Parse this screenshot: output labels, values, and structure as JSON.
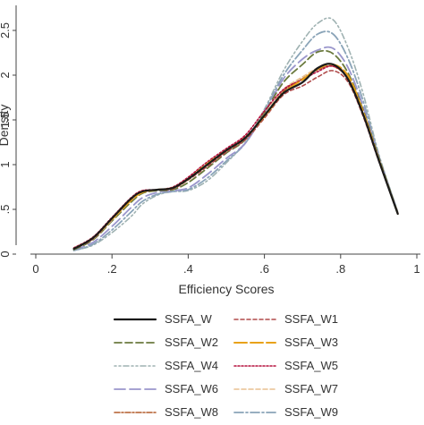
{
  "chart_data": {
    "type": "line",
    "xlabel": "Efficiency Scores",
    "ylabel": "Density",
    "xlim": [
      0,
      1
    ],
    "ylim": [
      0,
      2.7
    ],
    "x_ticks": [
      {
        "value": 0,
        "label": "0"
      },
      {
        "value": 0.2,
        "label": ".2"
      },
      {
        "value": 0.4,
        "label": ".4"
      },
      {
        "value": 0.6,
        "label": ".6"
      },
      {
        "value": 0.8,
        "label": ".8"
      },
      {
        "value": 1,
        "label": "1"
      }
    ],
    "y_ticks": [
      {
        "value": 0,
        "label": "0"
      },
      {
        "value": 0.5,
        "label": ".5"
      },
      {
        "value": 1,
        "label": "1"
      },
      {
        "value": 1.5,
        "label": "1.5"
      },
      {
        "value": 2,
        "label": "2"
      },
      {
        "value": 2.5,
        "label": "2.5"
      }
    ],
    "grid": false,
    "legend_position": "bottom",
    "x": [
      0.1,
      0.15,
      0.2,
      0.25,
      0.28,
      0.32,
      0.36,
      0.4,
      0.45,
      0.5,
      0.55,
      0.6,
      0.65,
      0.7,
      0.74,
      0.78,
      0.82,
      0.86,
      0.9,
      0.95
    ],
    "series": [
      {
        "name": "SSFA_W",
        "color": "#1a1a1a",
        "dash": "",
        "width": 2.2,
        "values": [
          0.06,
          0.18,
          0.4,
          0.62,
          0.7,
          0.72,
          0.74,
          0.84,
          1.0,
          1.16,
          1.3,
          1.55,
          1.8,
          1.92,
          2.08,
          2.12,
          1.95,
          1.55,
          1.05,
          0.45
        ]
      },
      {
        "name": "SSFA_W1",
        "color": "#b04a4a",
        "dash": "4 3",
        "width": 1.6,
        "values": [
          0.06,
          0.17,
          0.39,
          0.61,
          0.69,
          0.72,
          0.73,
          0.83,
          0.98,
          1.14,
          1.28,
          1.52,
          1.78,
          1.88,
          1.98,
          2.05,
          1.92,
          1.53,
          1.04,
          0.46
        ]
      },
      {
        "name": "SSFA_W2",
        "color": "#6b7a3e",
        "dash": "8 4",
        "width": 1.8,
        "values": [
          0.05,
          0.16,
          0.37,
          0.58,
          0.68,
          0.71,
          0.72,
          0.8,
          0.96,
          1.13,
          1.28,
          1.58,
          1.92,
          2.12,
          2.26,
          2.24,
          2.02,
          1.6,
          1.08,
          0.46
        ]
      },
      {
        "name": "SSFA_W3",
        "color": "#e8a21a",
        "dash": "14 4",
        "width": 2.0,
        "values": [
          0.06,
          0.18,
          0.39,
          0.6,
          0.69,
          0.72,
          0.74,
          0.84,
          1.01,
          1.16,
          1.3,
          1.54,
          1.8,
          1.95,
          2.07,
          2.12,
          1.99,
          1.58,
          1.06,
          0.45
        ]
      },
      {
        "name": "SSFA_W4",
        "color": "#9fb2b2",
        "dash": "2 3 2 3 6 3",
        "width": 1.6,
        "values": [
          0.04,
          0.1,
          0.24,
          0.42,
          0.56,
          0.66,
          0.7,
          0.71,
          0.82,
          1.02,
          1.25,
          1.62,
          2.05,
          2.38,
          2.58,
          2.62,
          2.3,
          1.78,
          1.12,
          0.47
        ]
      },
      {
        "name": "SSFA_W5",
        "color": "#b5123e",
        "dash": "2 2",
        "width": 1.6,
        "values": [
          0.07,
          0.19,
          0.41,
          0.63,
          0.71,
          0.72,
          0.75,
          0.86,
          1.03,
          1.18,
          1.33,
          1.6,
          1.84,
          1.95,
          2.04,
          2.1,
          1.96,
          1.56,
          1.05,
          0.45
        ]
      },
      {
        "name": "SSFA_W6",
        "color": "#9a96cc",
        "dash": "12 5",
        "width": 1.8,
        "values": [
          0.05,
          0.13,
          0.31,
          0.52,
          0.63,
          0.69,
          0.71,
          0.74,
          0.89,
          1.07,
          1.24,
          1.58,
          1.96,
          2.18,
          2.28,
          2.3,
          2.08,
          1.64,
          1.09,
          0.46
        ]
      },
      {
        "name": "SSFA_W7",
        "color": "#e8c090",
        "dash": "5 3",
        "width": 1.6,
        "values": [
          0.06,
          0.17,
          0.38,
          0.6,
          0.69,
          0.72,
          0.74,
          0.83,
          0.99,
          1.15,
          1.3,
          1.56,
          1.84,
          1.98,
          2.08,
          2.12,
          1.98,
          1.57,
          1.05,
          0.45
        ]
      },
      {
        "name": "SSFA_W8",
        "color": "#b35b2a",
        "dash": "6 2 2 2",
        "width": 1.6,
        "values": [
          0.06,
          0.18,
          0.4,
          0.62,
          0.7,
          0.72,
          0.74,
          0.84,
          1.0,
          1.16,
          1.31,
          1.54,
          1.82,
          1.96,
          2.06,
          2.1,
          1.95,
          1.55,
          1.05,
          0.45
        ]
      },
      {
        "name": "SSFA_W9",
        "color": "#8aa4b8",
        "dash": "10 3 2 3",
        "width": 1.8,
        "values": [
          0.04,
          0.11,
          0.27,
          0.47,
          0.59,
          0.67,
          0.7,
          0.72,
          0.85,
          1.04,
          1.24,
          1.6,
          2.0,
          2.28,
          2.46,
          2.46,
          2.18,
          1.7,
          1.1,
          0.47
        ]
      }
    ]
  }
}
